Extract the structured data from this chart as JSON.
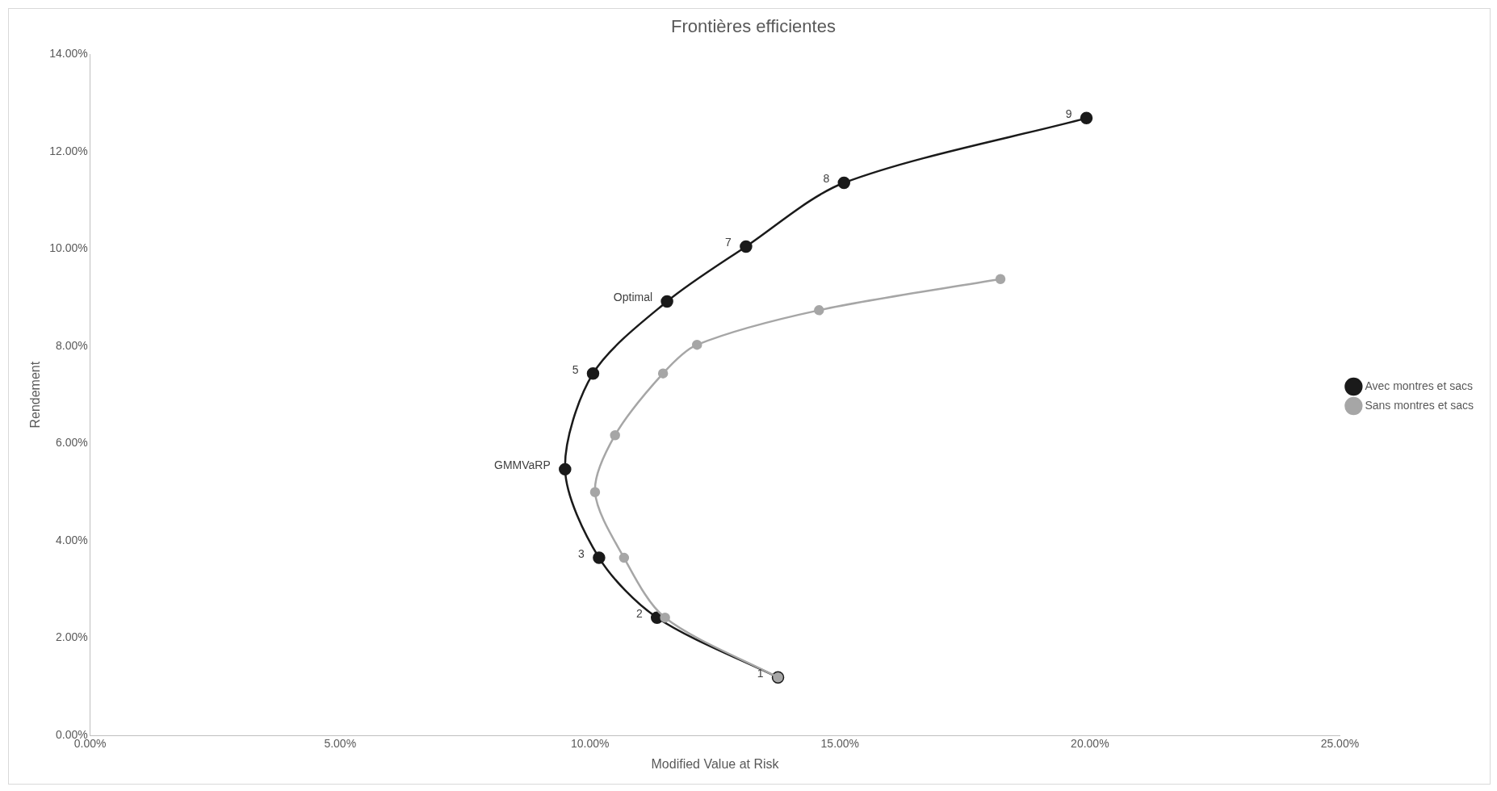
{
  "chart_data": {
    "type": "line",
    "title": "Frontières efficientes",
    "xlabel": "Modified Value at Risk",
    "ylabel": "Rendement",
    "xlim": [
      0,
      25
    ],
    "xticks": [
      {
        "value": 0,
        "label": "0.00%"
      },
      {
        "value": 5,
        "label": "5.00%"
      },
      {
        "value": 10,
        "label": "10.00%"
      },
      {
        "value": 15,
        "label": "15.00%"
      },
      {
        "value": 20,
        "label": "20.00%"
      },
      {
        "value": 25,
        "label": "25.00%"
      }
    ],
    "ylim": [
      0,
      14
    ],
    "yticks": [
      {
        "value": 0,
        "label": "0.00%"
      },
      {
        "value": 2,
        "label": "2.00%"
      },
      {
        "value": 4,
        "label": "4.00%"
      },
      {
        "value": 6,
        "label": "6.00%"
      },
      {
        "value": 8,
        "label": "8.00%"
      },
      {
        "value": 10,
        "label": "10.00%"
      },
      {
        "value": 12,
        "label": "12.00%"
      },
      {
        "value": 14,
        "label": "14.00%"
      }
    ],
    "annotations": [
      {
        "text": "1",
        "x": 13.76,
        "y": 1.19
      },
      {
        "text": "2",
        "x": 11.34,
        "y": 2.42
      },
      {
        "text": "3",
        "x": 10.18,
        "y": 3.65
      },
      {
        "text": "GMMVaRP",
        "x": 9.5,
        "y": 5.47
      },
      {
        "text": "5",
        "x": 10.06,
        "y": 7.44
      },
      {
        "text": "Optimal",
        "x": 11.54,
        "y": 8.92
      },
      {
        "text": "7",
        "x": 13.12,
        "y": 10.05
      },
      {
        "text": "8",
        "x": 15.08,
        "y": 11.36
      },
      {
        "text": "9",
        "x": 19.93,
        "y": 12.69
      }
    ],
    "grid": false,
    "legend": "right",
    "marker": "circle",
    "line_style": "solid",
    "series": [
      {
        "name": "Avec montres et sacs",
        "color": "#1a1a1a",
        "x": [
          13.76,
          11.34,
          10.18,
          9.5,
          10.06,
          11.54,
          13.12,
          15.08,
          19.93
        ],
        "values": [
          1.19,
          2.42,
          3.65,
          5.47,
          7.44,
          8.92,
          10.05,
          11.36,
          12.69
        ]
      },
      {
        "name": "Sans montres et sacs",
        "color": "#a6a6a6",
        "x": [
          13.76,
          11.5,
          10.68,
          10.1,
          10.5,
          11.46,
          12.14,
          14.58,
          18.21
        ],
        "values": [
          1.19,
          2.42,
          3.65,
          5.0,
          6.17,
          7.44,
          8.03,
          8.74,
          9.38
        ]
      }
    ]
  }
}
